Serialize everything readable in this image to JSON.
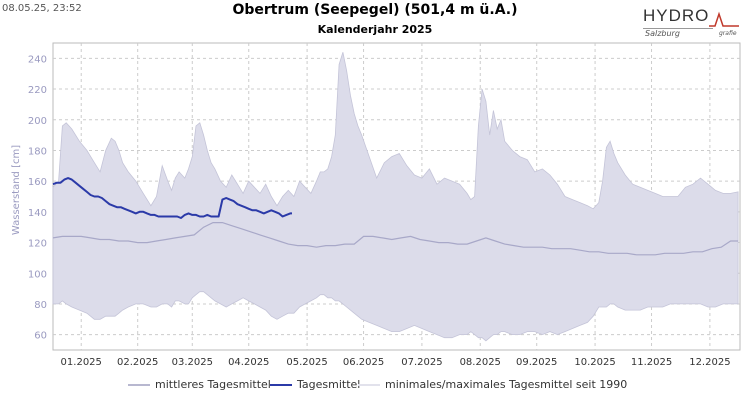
{
  "header": {
    "timestamp": "08.05.25, 23:52",
    "title": "Obertrum (Seepegel) (501,4 m ü.A.)",
    "subtitle": "Kalenderjahr 2025",
    "logo_main": "HYDRO",
    "logo_sub": "Salzburg",
    "logo_small": "grafie"
  },
  "chart_data": {
    "type": "line",
    "title": "Obertrum (Seepegel) (501,4 m ü.A.)",
    "subtitle": "Kalenderjahr 2025",
    "ylabel": "Wasserstand [cm]",
    "xlabel": "",
    "ylim": [
      50,
      250
    ],
    "yticks": [
      60,
      80,
      100,
      120,
      140,
      160,
      180,
      200,
      220,
      240
    ],
    "xlim_days": [
      0,
      365
    ],
    "xticks": [
      {
        "label": "01.2025",
        "day": 15
      },
      {
        "label": "02.2025",
        "day": 45
      },
      {
        "label": "03.2025",
        "day": 74
      },
      {
        "label": "04.2025",
        "day": 104
      },
      {
        "label": "05.2025",
        "day": 135
      },
      {
        "label": "06.2025",
        "day": 165
      },
      {
        "label": "07.2025",
        "day": 196
      },
      {
        "label": "08.2025",
        "day": 227
      },
      {
        "label": "09.2025",
        "day": 257
      },
      {
        "label": "10.2025",
        "day": 288
      },
      {
        "label": "11.2025",
        "day": 318
      },
      {
        "label": "12.2025",
        "day": 349
      }
    ],
    "grid": true,
    "legend_position": "bottom",
    "colors": {
      "band": "#dcdcea",
      "band_edge": "#c4c4d8",
      "mean": "#a8a8c8",
      "daily": "#2b3aa8",
      "grid": "#cccccc",
      "axis_text": "#333333",
      "ylabel_text": "#9a9ac0"
    },
    "series": [
      {
        "name": "minimales/maximales Tagesmittel seit 1990",
        "kind": "band",
        "x": [
          0,
          3,
          5,
          7,
          10,
          14,
          18,
          22,
          25,
          28,
          31,
          33,
          35,
          37,
          40,
          44,
          48,
          52,
          55,
          58,
          61,
          63,
          65,
          67,
          70,
          72,
          74,
          76,
          78,
          80,
          82,
          84,
          86,
          89,
          92,
          95,
          98,
          101,
          104,
          107,
          110,
          113,
          116,
          119,
          122,
          125,
          128,
          131,
          134,
          137,
          140,
          142,
          144,
          146,
          148,
          150,
          152,
          154,
          156,
          158,
          160,
          162,
          164,
          168,
          172,
          176,
          180,
          184,
          188,
          192,
          196,
          200,
          204,
          208,
          212,
          216,
          220,
          222,
          224,
          226,
          228,
          230,
          232,
          234,
          236,
          238,
          240,
          244,
          248,
          252,
          256,
          260,
          264,
          268,
          272,
          276,
          280,
          284,
          287,
          290,
          292,
          294,
          296,
          298,
          300,
          304,
          308,
          312,
          316,
          320,
          324,
          328,
          332,
          336,
          340,
          344,
          348,
          352,
          356,
          360,
          364
        ],
        "upper": [
          156,
          160,
          196,
          198,
          194,
          186,
          180,
          172,
          166,
          180,
          188,
          186,
          180,
          172,
          166,
          160,
          152,
          144,
          150,
          170,
          160,
          154,
          162,
          166,
          162,
          168,
          176,
          196,
          198,
          190,
          180,
          172,
          168,
          160,
          156,
          164,
          158,
          152,
          160,
          156,
          152,
          158,
          150,
          144,
          150,
          154,
          150,
          160,
          156,
          152,
          160,
          166,
          166,
          168,
          176,
          190,
          236,
          244,
          232,
          216,
          204,
          196,
          190,
          176,
          162,
          172,
          176,
          178,
          170,
          164,
          162,
          168,
          158,
          162,
          160,
          158,
          152,
          148,
          150,
          196,
          220,
          212,
          190,
          206,
          194,
          200,
          186,
          180,
          176,
          174,
          166,
          168,
          164,
          158,
          150,
          148,
          146,
          144,
          142,
          146,
          160,
          182,
          186,
          178,
          172,
          164,
          158,
          156,
          154,
          152,
          150,
          150,
          150,
          156,
          158,
          162,
          158,
          154,
          152,
          152,
          153
        ],
        "lower": [
          80,
          80,
          82,
          80,
          78,
          76,
          74,
          70,
          70,
          72,
          72,
          72,
          74,
          76,
          78,
          80,
          80,
          78,
          78,
          80,
          80,
          78,
          82,
          82,
          80,
          80,
          84,
          86,
          88,
          88,
          86,
          84,
          82,
          80,
          78,
          80,
          82,
          84,
          82,
          80,
          78,
          76,
          72,
          70,
          72,
          74,
          74,
          78,
          80,
          82,
          84,
          86,
          86,
          84,
          84,
          82,
          82,
          80,
          78,
          76,
          74,
          72,
          70,
          68,
          66,
          64,
          62,
          62,
          64,
          66,
          64,
          62,
          60,
          58,
          58,
          60,
          60,
          62,
          60,
          58,
          58,
          56,
          58,
          60,
          60,
          62,
          62,
          60,
          60,
          62,
          62,
          60,
          62,
          60,
          62,
          64,
          66,
          68,
          72,
          78,
          78,
          78,
          80,
          80,
          78,
          76,
          76,
          76,
          78,
          78,
          78,
          80,
          80,
          80,
          80,
          80,
          78,
          78,
          80,
          80,
          80
        ]
      },
      {
        "name": "mittleres Tagesmittel",
        "kind": "line",
        "x": [
          0,
          5,
          10,
          15,
          20,
          25,
          30,
          35,
          40,
          45,
          50,
          55,
          60,
          65,
          70,
          75,
          80,
          85,
          90,
          95,
          100,
          105,
          110,
          115,
          120,
          125,
          130,
          135,
          140,
          145,
          150,
          155,
          160,
          165,
          170,
          175,
          180,
          185,
          190,
          195,
          200,
          205,
          210,
          215,
          220,
          225,
          230,
          235,
          240,
          245,
          250,
          255,
          260,
          265,
          270,
          275,
          280,
          285,
          290,
          295,
          300,
          305,
          310,
          315,
          320,
          325,
          330,
          335,
          340,
          345,
          350,
          355,
          360,
          364
        ],
        "y": [
          123,
          124,
          124,
          124,
          123,
          122,
          122,
          121,
          121,
          120,
          120,
          121,
          122,
          123,
          124,
          125,
          130,
          133,
          133,
          131,
          129,
          127,
          125,
          123,
          121,
          119,
          118,
          118,
          117,
          118,
          118,
          119,
          119,
          124,
          124,
          123,
          122,
          123,
          124,
          122,
          121,
          120,
          120,
          119,
          119,
          121,
          123,
          121,
          119,
          118,
          117,
          117,
          117,
          116,
          116,
          116,
          115,
          114,
          114,
          113,
          113,
          113,
          112,
          112,
          112,
          113,
          113,
          113,
          114,
          114,
          116,
          117,
          121,
          121
        ]
      },
      {
        "name": "Tagesmittel",
        "kind": "line",
        "x": [
          0,
          2,
          4,
          6,
          8,
          10,
          12,
          14,
          16,
          18,
          20,
          22,
          24,
          26,
          28,
          30,
          32,
          34,
          36,
          38,
          40,
          42,
          44,
          46,
          48,
          50,
          52,
          54,
          56,
          58,
          60,
          62,
          64,
          66,
          68,
          70,
          72,
          74,
          76,
          78,
          80,
          82,
          84,
          86,
          88,
          90,
          92,
          94,
          96,
          98,
          100,
          102,
          104,
          106,
          108,
          110,
          112,
          114,
          116,
          118,
          120,
          122,
          124,
          126,
          127
        ],
        "y": [
          158,
          159,
          159,
          161,
          162,
          161,
          159,
          157,
          155,
          153,
          151,
          150,
          150,
          149,
          147,
          145,
          144,
          143,
          143,
          142,
          141,
          140,
          139,
          140,
          140,
          139,
          138,
          138,
          137,
          137,
          137,
          137,
          137,
          137,
          136,
          138,
          139,
          138,
          138,
          137,
          137,
          138,
          137,
          137,
          137,
          148,
          149,
          148,
          147,
          145,
          144,
          143,
          142,
          141,
          141,
          140,
          139,
          140,
          141,
          140,
          139,
          137,
          138,
          139,
          139
        ]
      }
    ]
  },
  "legend": {
    "items": [
      {
        "label": "mittleres Tagesmittel",
        "color": "#b8b8d0"
      },
      {
        "label": "Tagesmittel",
        "color": "#2b3aa8"
      },
      {
        "label": "minimales/maximales Tagesmittel seit 1990",
        "color": "#e2e2ec"
      }
    ]
  }
}
